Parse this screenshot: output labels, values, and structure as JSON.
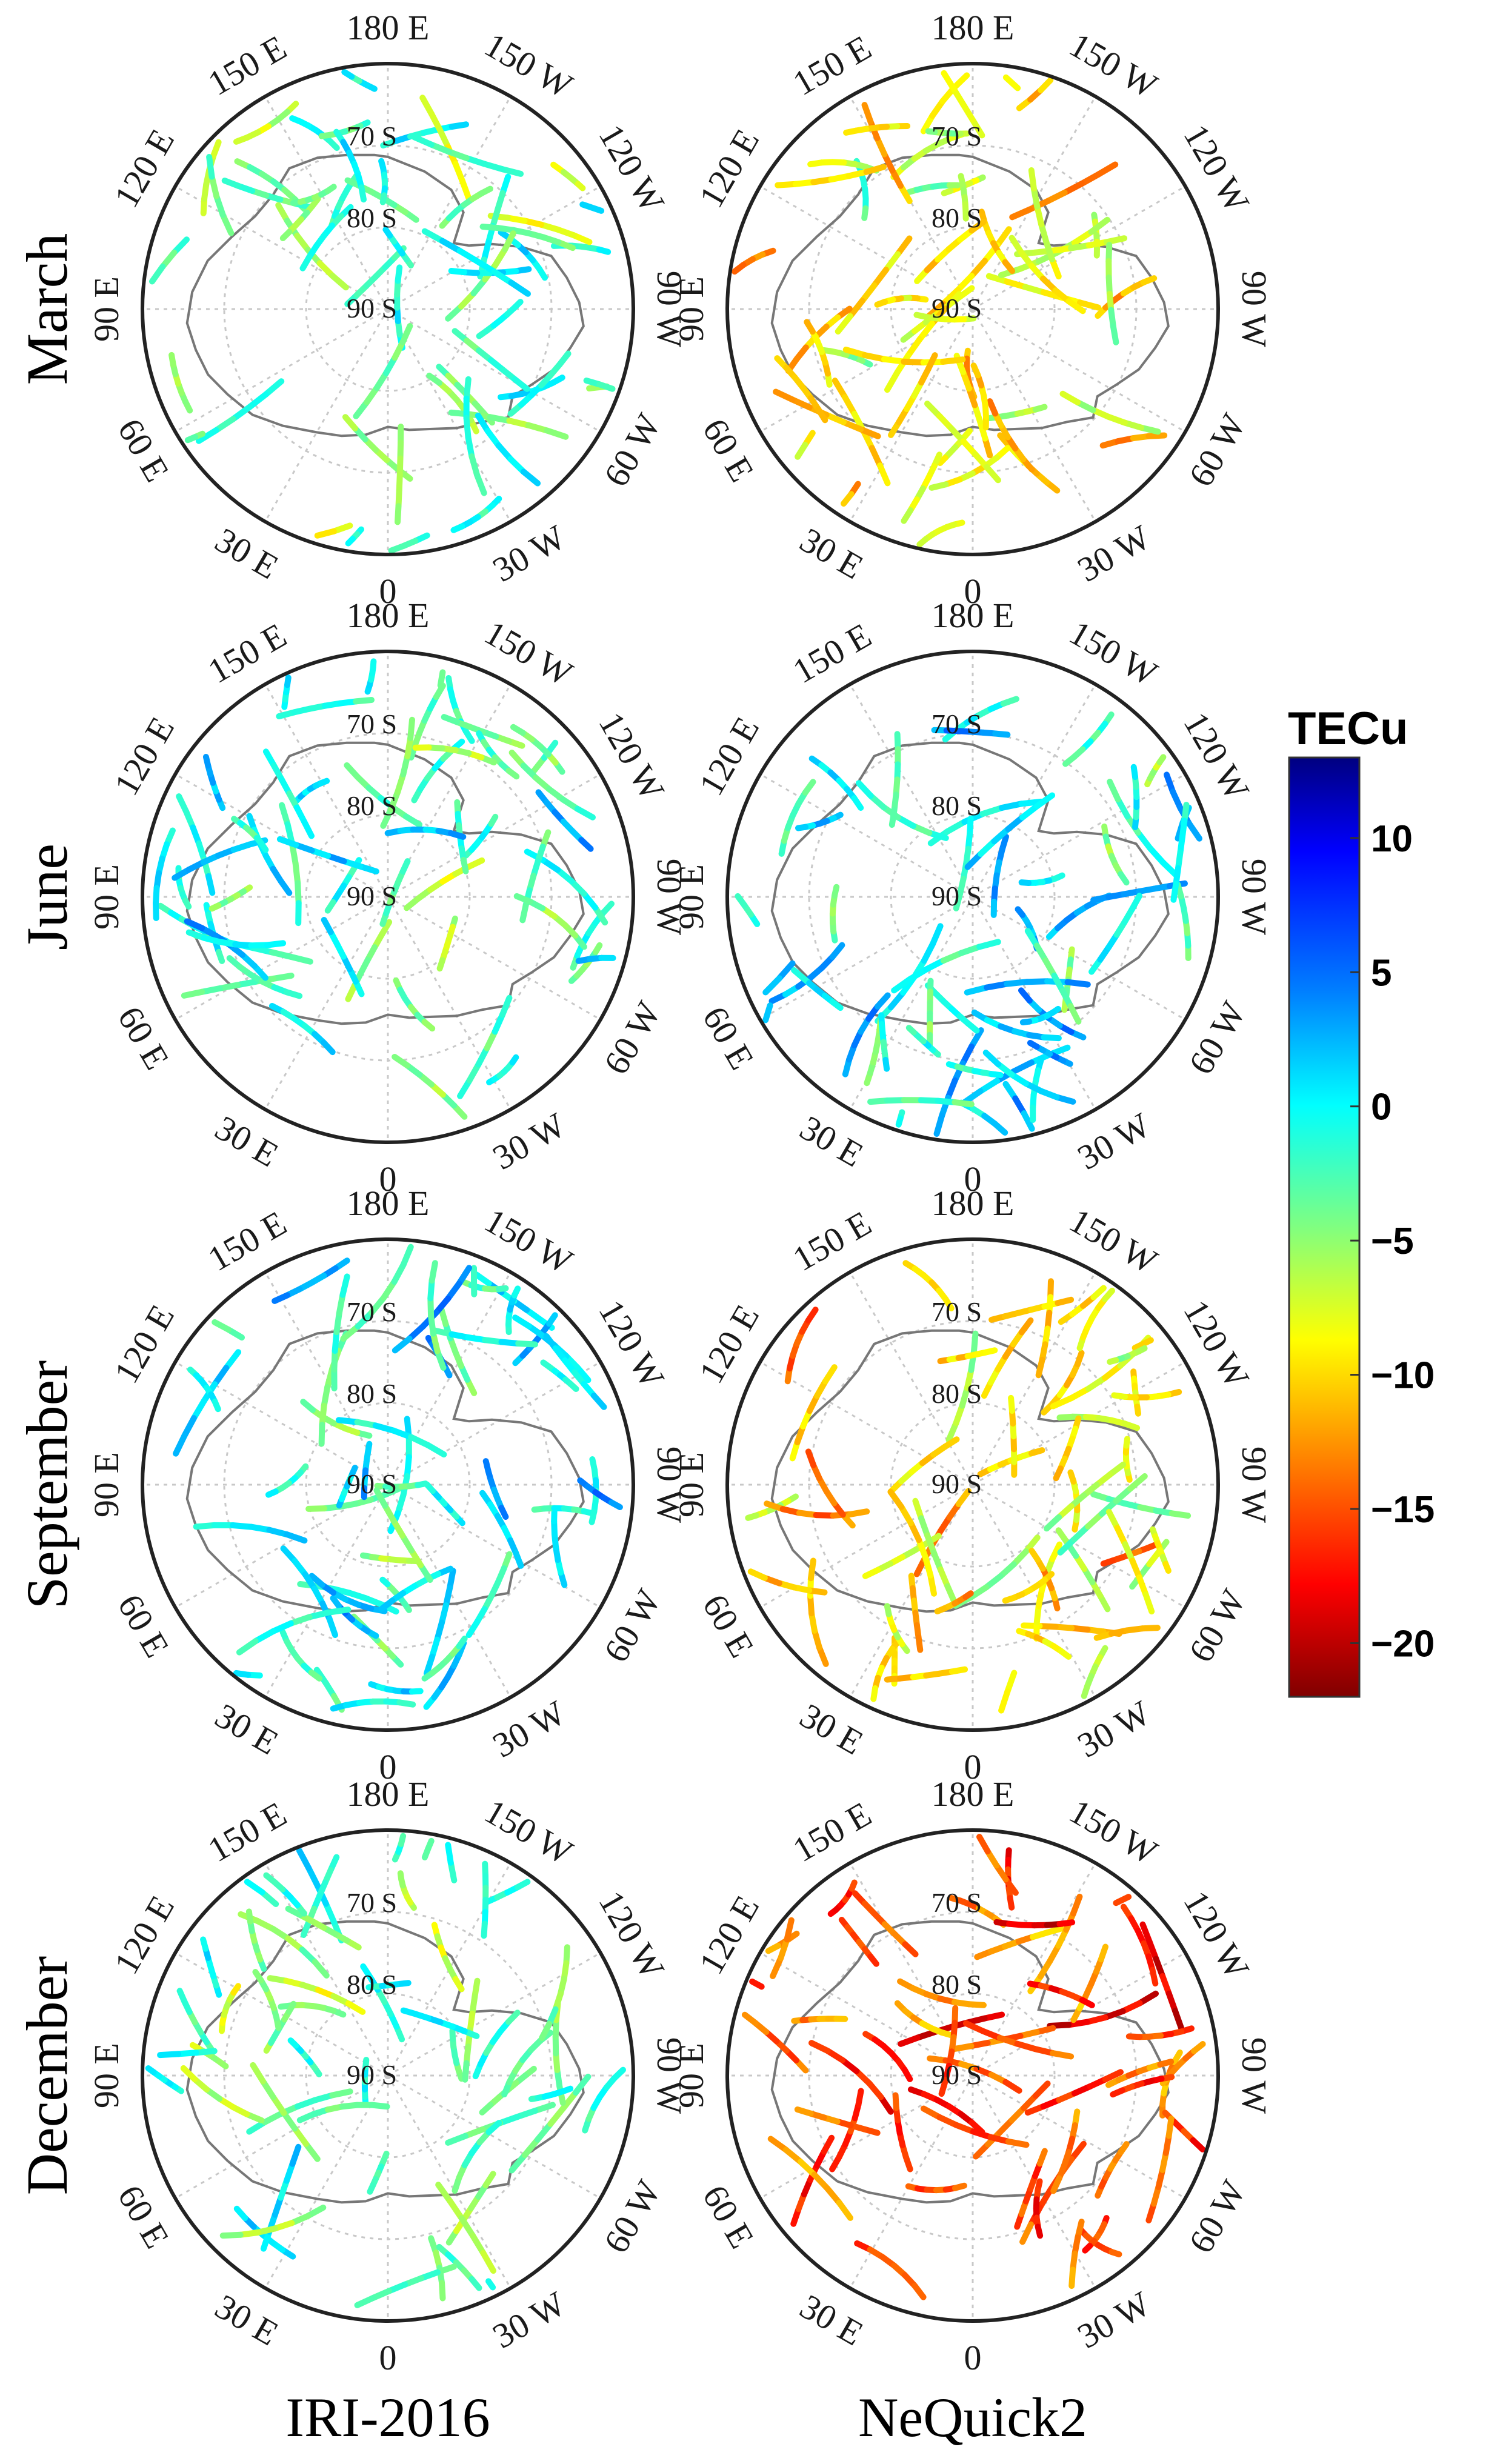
{
  "rows": [
    "March",
    "June",
    "September",
    "December"
  ],
  "columns": [
    "IRI-2016",
    "NeQuick2"
  ],
  "longitude_labels": [
    "180 E",
    "150 E",
    "150 W",
    "120 E",
    "120 W",
    "90 E",
    "90 W",
    "60 E",
    "60 W",
    "30 E",
    "30 W",
    "0"
  ],
  "latitude_labels": [
    "70 S",
    "80 S",
    "90 S"
  ],
  "colorbar": {
    "title": "TECu",
    "min": -22,
    "max": 13,
    "ticks": [
      10,
      5,
      0,
      -5,
      -10,
      -15,
      -20
    ],
    "tick_labels": [
      "10",
      "5",
      "0",
      "−5",
      "−10",
      "−15",
      "−20"
    ],
    "colors": [
      "#000080",
      "#0000ff",
      "#0080ff",
      "#00ffff",
      "#80ff80",
      "#ffff00",
      "#ff8000",
      "#ff0000",
      "#800000"
    ]
  },
  "panel_bias_mean": {
    "March": {
      "IRI-2016": -3,
      "NeQuick2": -8
    },
    "June": {
      "IRI-2016": -2,
      "NeQuick2": -1
    },
    "September": {
      "IRI-2016": -1,
      "NeQuick2": -9
    },
    "December": {
      "IRI-2016": -3,
      "NeQuick2": -15
    }
  }
}
